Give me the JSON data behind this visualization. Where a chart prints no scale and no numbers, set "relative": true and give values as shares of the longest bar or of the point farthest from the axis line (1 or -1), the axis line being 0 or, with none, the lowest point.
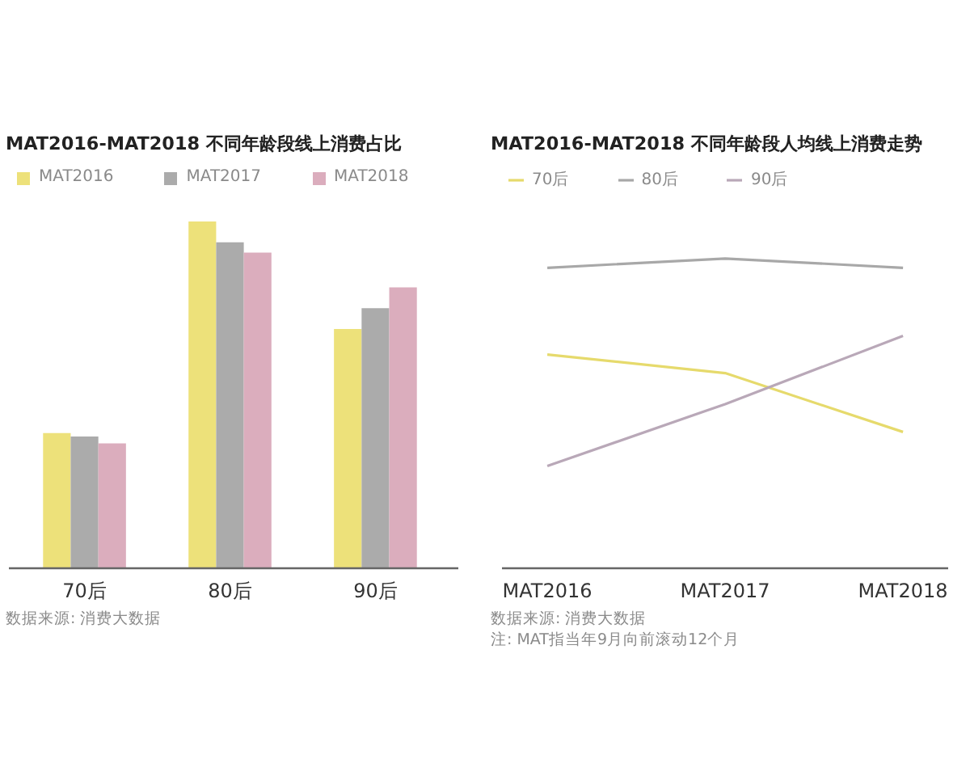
{
  "chart_data": [
    {
      "type": "bar",
      "title": "MAT2016-MAT2018 不同年龄段线上消费占比",
      "categories": [
        "70后",
        "80后",
        "90后"
      ],
      "relative": true,
      "legend": "top left",
      "series": [
        {
          "name": "MAT2016",
          "color": "#ede17a",
          "values": [
            0.39,
            1,
            0.69
          ]
        },
        {
          "name": "MAT2017",
          "color": "#ababab",
          "values": [
            0.38,
            0.94,
            0.75
          ]
        },
        {
          "name": "MAT2018",
          "color": "#dbadbd",
          "values": [
            0.36,
            0.91,
            0.81
          ]
        }
      ],
      "annotations": [
        "数据来源: 消费大数据"
      ]
    },
    {
      "type": "line",
      "title": "MAT2016-MAT2018 不同年龄段人均线上消费走势",
      "categories": [
        "MAT2016",
        "MAT2017",
        "MAT2018"
      ],
      "relative": true,
      "legend": "top left",
      "series": [
        {
          "name": "70后",
          "color": "#e6da6c",
          "values": [
            0.69,
            0.63,
            0.44
          ]
        },
        {
          "name": "80后",
          "color": "#a8a8a8",
          "values": [
            0.97,
            1,
            0.97
          ]
        },
        {
          "name": "90后",
          "color": "#b9a8b8",
          "values": [
            0.33,
            0.53,
            0.75
          ]
        }
      ],
      "annotations": [
        "数据来源: 消费大数据",
        "注: MAT指当年9月向前滚动12个月"
      ]
    }
  ]
}
